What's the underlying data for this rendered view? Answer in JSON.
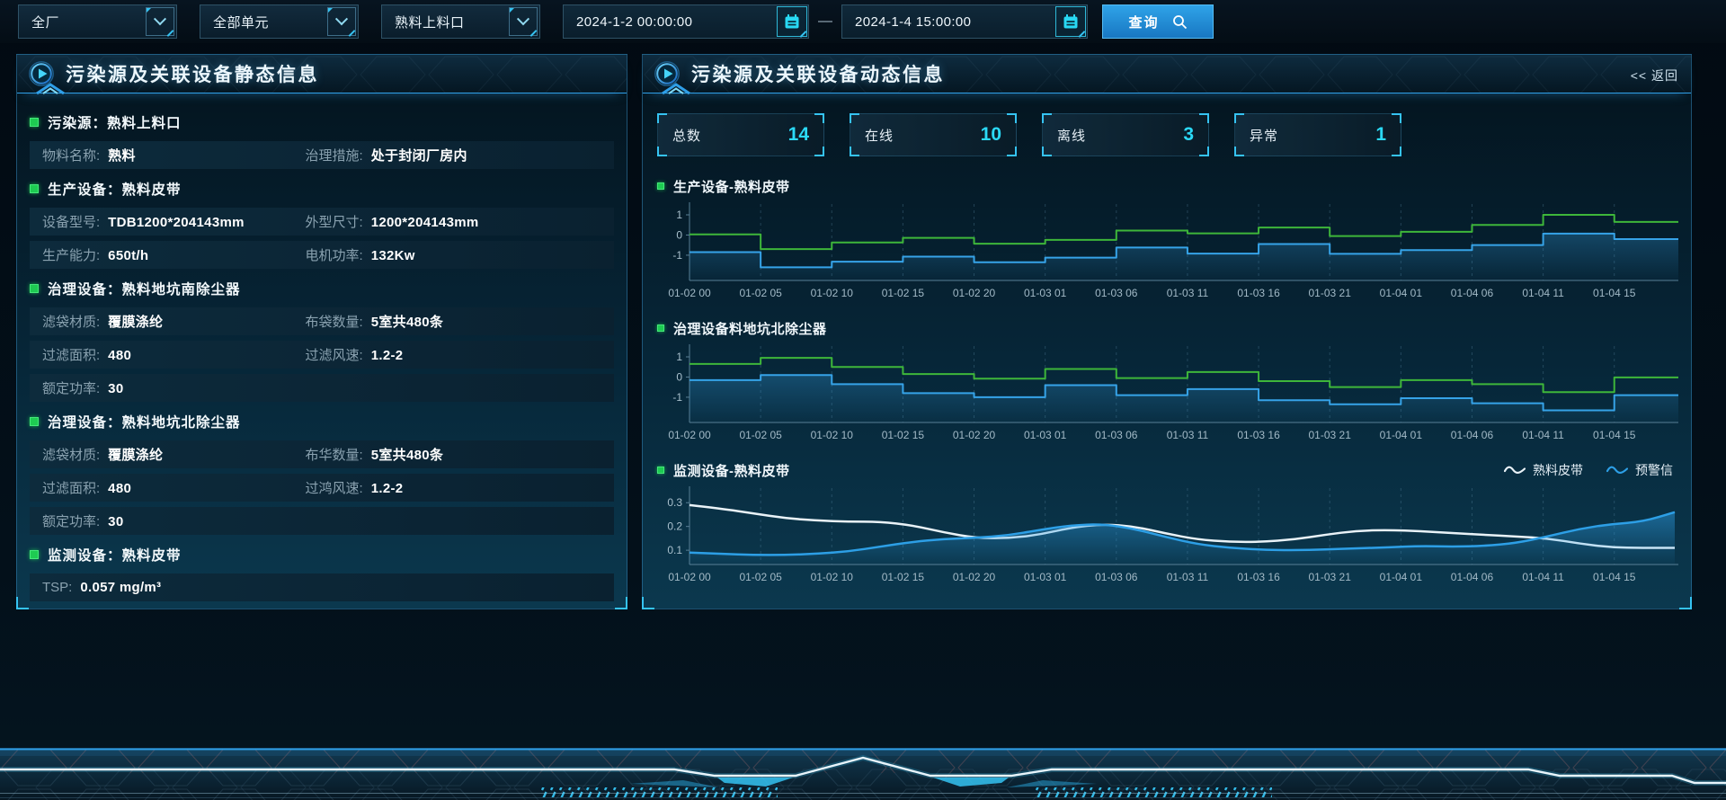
{
  "topbar": {
    "selects": [
      {
        "value": "全厂"
      },
      {
        "value": "全部单元"
      },
      {
        "value": "熟料上料口"
      }
    ],
    "date_from": "2024-1-2 00:00:00",
    "date_to": "2024-1-4 15:00:00",
    "separator": "—",
    "query_label": "查询"
  },
  "left_panel": {
    "title": "污染源及关联设备静态信息",
    "blocks": [
      {
        "kind": "section",
        "text": "污染源：熟料上料口"
      },
      {
        "kind": "row",
        "l1": "物料名称:",
        "v1": "熟料",
        "l2": "治理措施:",
        "v2": "处于封闭厂房内"
      },
      {
        "kind": "section",
        "text": "生产设备：熟料皮带"
      },
      {
        "kind": "row",
        "l1": "设备型号:",
        "v1": "TDB1200*204143mm",
        "l2": "外型尺寸:",
        "v2": "1200*204143mm"
      },
      {
        "kind": "row",
        "l1": "生产能力:",
        "v1": "650t/h",
        "l2": "电机功率:",
        "v2": "132Kw"
      },
      {
        "kind": "section",
        "text": "治理设备：熟料地坑南除尘器"
      },
      {
        "kind": "row",
        "l1": "滤袋材质:",
        "v1": "覆膜涤纶",
        "l2": "布袋数量:",
        "v2": "5室共480条"
      },
      {
        "kind": "row",
        "l1": "过滤面积:",
        "v1": "480",
        "l2": "过滤风速:",
        "v2": "1.2-2"
      },
      {
        "kind": "row",
        "l1": "额定功率:",
        "v1": "30",
        "l2": "",
        "v2": ""
      },
      {
        "kind": "section",
        "text": "治理设备：熟料地坑北除尘器"
      },
      {
        "kind": "row",
        "l1": "滤袋材质:",
        "v1": "覆膜涤纶",
        "l2": "布华数量:",
        "v2": "5室共480条"
      },
      {
        "kind": "row",
        "l1": "过滤面积:",
        "v1": "480",
        "l2": "过鸿风速:",
        "v2": "1.2-2"
      },
      {
        "kind": "row",
        "l1": "额定功率:",
        "v1": "30",
        "l2": "",
        "v2": ""
      },
      {
        "kind": "section",
        "text": "监测设备：熟料皮带"
      },
      {
        "kind": "row",
        "l1": "TSP:",
        "v1": "0.057 mg/m³",
        "l2": "",
        "v2": ""
      }
    ]
  },
  "right_panel": {
    "title": "污染源及关联设备动态信息",
    "back_label": "<< 返回",
    "stats": [
      {
        "label": "总数",
        "value": "14"
      },
      {
        "label": "在线",
        "value": "10"
      },
      {
        "label": "离线",
        "value": "3"
      },
      {
        "label": "异常",
        "value": "1"
      }
    ]
  },
  "chart_data": [
    {
      "type": "step",
      "title": "生产设备-熟料皮带",
      "x_labels": [
        "01-02 00",
        "01-02 05",
        "01-02 10",
        "01-02 15",
        "01-02 20",
        "01-03 01",
        "01-03 06",
        "01-03 11",
        "01-03 16",
        "01-03 21",
        "01-04 01",
        "01-04 06",
        "01-04 11",
        "01-04 15"
      ],
      "tail": 0.85,
      "yticks": [
        1,
        0,
        -1
      ],
      "ylim": [
        -2.25,
        1.4
      ],
      "grid": "vertical-dashed",
      "series": [
        {
          "name": "run-state-green",
          "color": "#3eb63a",
          "values": [
            0.03,
            -0.7,
            -0.37,
            -0.14,
            -0.43,
            -0.24,
            0.22,
            0.08,
            0.37,
            -0.05,
            0.16,
            0.5,
            1.0,
            0.65
          ]
        },
        {
          "name": "run-state-blue",
          "color": "#36a3e8",
          "area": true,
          "values": [
            -0.85,
            -1.6,
            -1.32,
            -1.07,
            -1.35,
            -1.12,
            -0.62,
            -0.92,
            -0.45,
            -0.93,
            -0.75,
            -0.5,
            0.07,
            -0.2
          ]
        }
      ]
    },
    {
      "type": "step",
      "title": "治理设备料地坑北除尘器",
      "x_labels": [
        "01-02 00",
        "01-02 05",
        "01-02 10",
        "01-02 15",
        "01-02 20",
        "01-03 01",
        "01-03 06",
        "01-03 11",
        "01-03 16",
        "01-03 21",
        "01-04 01",
        "01-04 06",
        "01-04 11",
        "01-04 15"
      ],
      "tail": 0.85,
      "yticks": [
        1,
        0,
        -1
      ],
      "ylim": [
        -2.25,
        1.4
      ],
      "grid": "vertical-dashed",
      "series": [
        {
          "name": "run-state-green",
          "color": "#3eb63a",
          "values": [
            0.65,
            0.95,
            0.5,
            0.15,
            -0.08,
            0.4,
            -0.05,
            0.25,
            -0.2,
            -0.5,
            -0.15,
            -0.35,
            -0.75,
            -0.02
          ]
        },
        {
          "name": "run-state-blue",
          "color": "#36a3e8",
          "area": true,
          "values": [
            -0.15,
            0.1,
            -0.35,
            -0.8,
            -1.0,
            -0.4,
            -0.9,
            -0.6,
            -1.15,
            -1.35,
            -1.05,
            -1.3,
            -1.65,
            -0.9
          ]
        }
      ]
    },
    {
      "type": "smooth",
      "title": "监测设备-熟料皮带",
      "x_labels": [
        "01-02 00",
        "01-02 05",
        "01-02 10",
        "01-02 15",
        "01-02 20",
        "01-03 01",
        "01-03 06",
        "01-03 11",
        "01-03 16",
        "01-03 21",
        "01-04 01",
        "01-04 06",
        "01-04 11",
        "01-04 15"
      ],
      "tail": 0.85,
      "yticks": [
        0.3,
        0.2,
        0.1
      ],
      "ylim": [
        0.04,
        0.35
      ],
      "grid": "vertical-dashed",
      "legend": [
        {
          "label": "熟料皮带",
          "color": "#e9f2f7"
        },
        {
          "label": "预警信",
          "color": "#2d9fe6"
        }
      ],
      "series": [
        {
          "name": "熟料皮带",
          "color": "#e9f2f7",
          "values": [
            0.29,
            0.275,
            0.255,
            0.235,
            0.225,
            0.22,
            0.22,
            0.205,
            0.175,
            0.152,
            0.15,
            0.165,
            0.195,
            0.21,
            0.2,
            0.17,
            0.145,
            0.135,
            0.135,
            0.145,
            0.165,
            0.182,
            0.185,
            0.18,
            0.172,
            0.165,
            0.158,
            0.15,
            0.128,
            0.112,
            0.11,
            0.11
          ]
        },
        {
          "name": "预警信",
          "color": "#2d9fe6",
          "area": true,
          "values": [
            0.09,
            0.085,
            0.08,
            0.08,
            0.085,
            0.095,
            0.115,
            0.135,
            0.147,
            0.152,
            0.162,
            0.185,
            0.205,
            0.21,
            0.19,
            0.155,
            0.125,
            0.11,
            0.102,
            0.1,
            0.103,
            0.108,
            0.112,
            0.118,
            0.115,
            0.118,
            0.13,
            0.158,
            0.19,
            0.21,
            0.22,
            0.26
          ]
        }
      ]
    }
  ],
  "colors": {
    "accent_blue": "#2f9fe8",
    "cyan": "#2bd9f6",
    "green": "#3eb63a",
    "panel_border": "#2e7aa8"
  }
}
